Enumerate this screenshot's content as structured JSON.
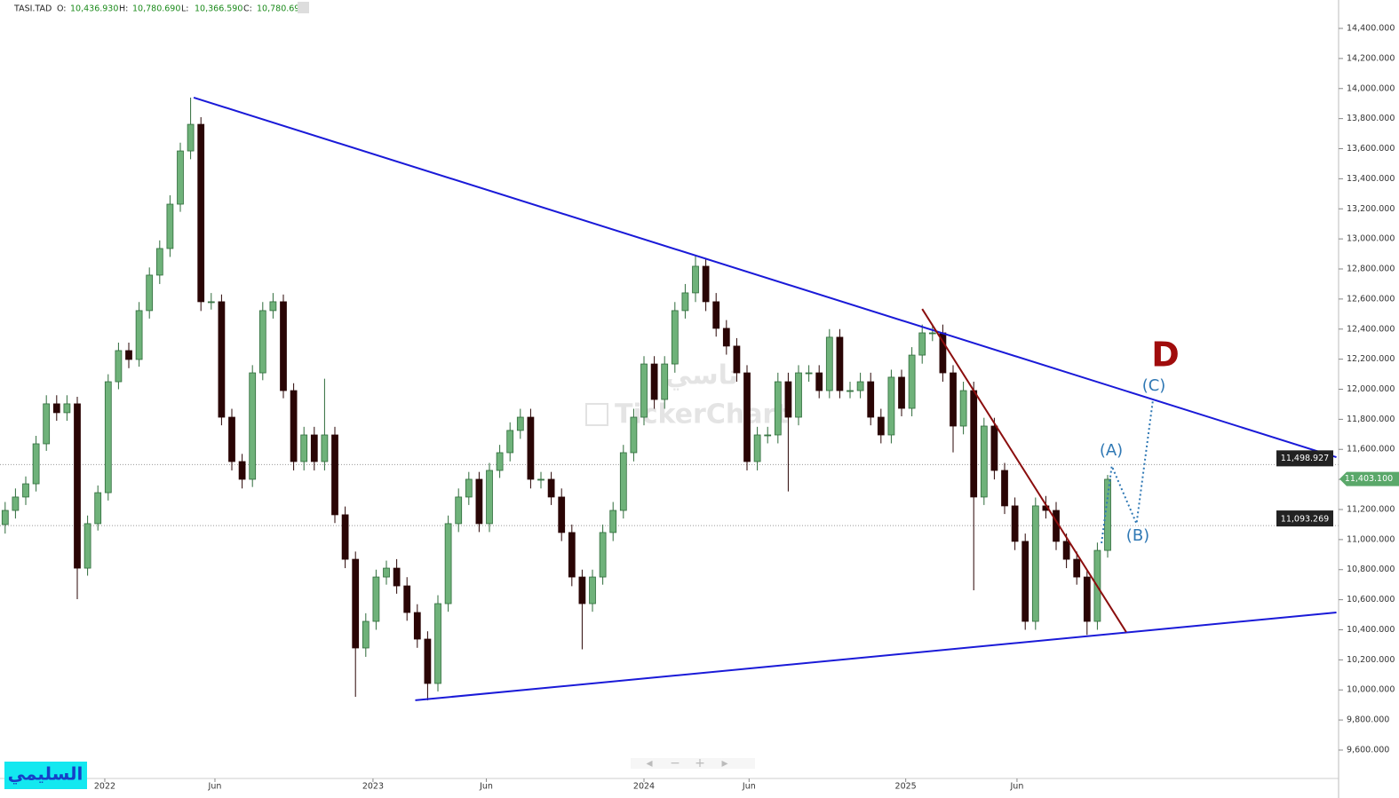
{
  "chart_data": {
    "type": "candlestick",
    "symbol": "TASI.TAD",
    "header": [
      {
        "key": "O:",
        "value": "10,436.930"
      },
      {
        "key": "H:",
        "value": "10,780.690"
      },
      {
        "key": "L:",
        "value": "10,366.590"
      },
      {
        "key": "C:",
        "value": "10,780.690"
      }
    ],
    "watermark": "TickerChart",
    "watermark_ar": "تاسي",
    "author": "السليمي",
    "up_color": "#6fb27a",
    "down_color": "#2a0505",
    "x": [
      0,
      1,
      2,
      3,
      4,
      5,
      6,
      7,
      8,
      9,
      10,
      11,
      12,
      13,
      14,
      15,
      16,
      17,
      18,
      19,
      20,
      21,
      22,
      23,
      24,
      25,
      26,
      27,
      28,
      29,
      30,
      31,
      32,
      33,
      34,
      35,
      36,
      37,
      38,
      39,
      40,
      41,
      42,
      43,
      44,
      45,
      46,
      47,
      48,
      49,
      50,
      51,
      52,
      53,
      54,
      55,
      56,
      57,
      58,
      59,
      60,
      61,
      62,
      63,
      64,
      65,
      66,
      67,
      68,
      69,
      70,
      71,
      72,
      73,
      74,
      75,
      76,
      77,
      78,
      79,
      80,
      81,
      82,
      83,
      84,
      85,
      86,
      87,
      88,
      89,
      90,
      91,
      92,
      93,
      94,
      95,
      96,
      97,
      98,
      99,
      100,
      101,
      102,
      103,
      104,
      105,
      106,
      107
    ],
    "open": [
      11100,
      11194,
      11283,
      11371,
      11637,
      11903,
      11844,
      11903,
      10810,
      11106,
      11312,
      12050,
      12257,
      12198,
      12523,
      12759,
      12936,
      13231,
      13585,
      13762,
      12582,
      12582,
      11814,
      11519,
      11401,
      12109,
      12523,
      12582,
      11991,
      11519,
      11696,
      11519,
      11696,
      11165,
      10869,
      10279,
      10456,
      10751,
      10810,
      10692,
      10515,
      10338,
      10043,
      10574,
      11106,
      11283,
      11401,
      11106,
      11460,
      11578,
      11726,
      11814,
      11401,
      11401,
      11283,
      11047,
      10751,
      10574,
      10751,
      11047,
      11194,
      11578,
      11814,
      12168,
      11932,
      12168,
      12523,
      12641,
      12818,
      12582,
      12405,
      12287,
      12109,
      11519,
      11696,
      11696,
      12050,
      11814,
      12109,
      12109,
      11991,
      12346,
      11991,
      11991,
      12050,
      11814,
      11696,
      12080,
      11873,
      12227,
      12375,
      12375,
      12109,
      11755,
      11991,
      11283,
      11755,
      11460,
      11224,
      10988,
      10456,
      11224,
      11194,
      10988,
      10869,
      10751,
      10456,
      10928
    ],
    "high": [
      11250,
      11340,
      11420,
      11690,
      11960,
      11960,
      11960,
      11950,
      11160,
      11360,
      12100,
      12310,
      12310,
      12580,
      12810,
      12990,
      13290,
      13640,
      13940,
      13810,
      12640,
      12630,
      11870,
      11570,
      12160,
      12580,
      12640,
      12630,
      12040,
      11750,
      11750,
      12070,
      11750,
      11220,
      10920,
      10510,
      10800,
      10860,
      10870,
      10750,
      10570,
      10390,
      10630,
      11160,
      11340,
      11450,
      11450,
      11510,
      11630,
      11780,
      11870,
      11870,
      11450,
      11450,
      11340,
      11100,
      10800,
      10800,
      11100,
      11250,
      11630,
      11870,
      12220,
      12220,
      12220,
      12580,
      12700,
      12890,
      12870,
      12640,
      12460,
      12340,
      12160,
      11750,
      11750,
      12110,
      12110,
      12160,
      12160,
      12160,
      12400,
      12400,
      12050,
      12110,
      12110,
      11870,
      12130,
      12130,
      12280,
      12430,
      12430,
      12430,
      12160,
      12050,
      12050,
      11810,
      11810,
      11510,
      11280,
      11040,
      11280,
      11290,
      11250,
      11040,
      10920,
      10800,
      10980,
      11430
    ],
    "low": [
      11040,
      11140,
      11230,
      11320,
      11590,
      11790,
      11790,
      10604,
      10760,
      11060,
      11260,
      12000,
      12140,
      12150,
      12470,
      12700,
      12880,
      13180,
      13530,
      12520,
      12530,
      11760,
      11460,
      11340,
      11350,
      12060,
      12470,
      11940,
      11460,
      11460,
      11460,
      11460,
      11110,
      10810,
      9954,
      10220,
      10400,
      10700,
      10640,
      10460,
      10280,
      9931,
      9990,
      10520,
      11050,
      11230,
      11050,
      11050,
      11410,
      11520,
      11670,
      11340,
      11340,
      11230,
      10990,
      10690,
      10270,
      10520,
      10700,
      10990,
      11140,
      11520,
      11760,
      11870,
      11870,
      12110,
      12470,
      12580,
      12520,
      12350,
      12230,
      12050,
      11460,
      11460,
      11640,
      11640,
      11320,
      11760,
      12050,
      11940,
      11940,
      11940,
      11940,
      11940,
      11760,
      11640,
      11640,
      11820,
      11820,
      12170,
      12320,
      12050,
      11580,
      11700,
      10663,
      11230,
      11400,
      11170,
      10930,
      10400,
      10400,
      11140,
      10930,
      10810,
      10700,
      10366,
      10400,
      10880
    ],
    "close": [
      11194,
      11283,
      11371,
      11637,
      11903,
      11844,
      11903,
      10810,
      11106,
      11312,
      12050,
      12257,
      12198,
      12523,
      12759,
      12936,
      13231,
      13585,
      13762,
      12582,
      12582,
      11814,
      11519,
      11401,
      12109,
      12523,
      12582,
      11991,
      11519,
      11696,
      11519,
      11696,
      11165,
      10869,
      10279,
      10456,
      10751,
      10810,
      10692,
      10515,
      10338,
      10043,
      10574,
      11106,
      11283,
      11401,
      11106,
      11460,
      11578,
      11726,
      11814,
      11401,
      11401,
      11283,
      11047,
      10751,
      10574,
      10751,
      11047,
      11194,
      11578,
      11814,
      12168,
      11932,
      12168,
      12523,
      12641,
      12818,
      12582,
      12405,
      12287,
      12109,
      11519,
      11696,
      11696,
      12050,
      11814,
      12109,
      12109,
      11991,
      12346,
      11991,
      11991,
      12050,
      11814,
      11696,
      12080,
      11873,
      12227,
      12375,
      12375,
      12109,
      11755,
      11991,
      11283,
      11755,
      11460,
      11224,
      10988,
      10456,
      11224,
      11194,
      10988,
      10869,
      10751,
      10456,
      10928,
      11401
    ],
    "xlim": [
      -0.5,
      129.24
    ],
    "xticks": [
      {
        "value": 9.67,
        "label": "2022"
      },
      {
        "value": 20.36,
        "label": "Jun"
      },
      {
        "value": 35.7,
        "label": "2023"
      },
      {
        "value": 46.7,
        "label": "Jun"
      },
      {
        "value": 62.0,
        "label": "2024"
      },
      {
        "value": 72.2,
        "label": "Jun"
      },
      {
        "value": 87.4,
        "label": "2025"
      },
      {
        "value": 98.2,
        "label": "Jun"
      }
    ],
    "ylim": [
      9411,
      14589
    ],
    "yticks": [
      {
        "value": 9600,
        "label": "9,600.000"
      },
      {
        "value": 9800,
        "label": "9,800.000"
      },
      {
        "value": 10000,
        "label": "10,000.000"
      },
      {
        "value": 10200,
        "label": "10,200.000"
      },
      {
        "value": 10400,
        "label": "10,400.000"
      },
      {
        "value": 10600,
        "label": "10,600.000"
      },
      {
        "value": 10800,
        "label": "10,800.000"
      },
      {
        "value": 11000,
        "label": "11,000.000"
      },
      {
        "value": 11200,
        "label": "11,200.000"
      },
      {
        "value": 11400,
        "label": "11,400.000"
      },
      {
        "value": 11600,
        "label": "11,600.000"
      },
      {
        "value": 11800,
        "label": "11,800.000"
      },
      {
        "value": 12000,
        "label": "12,000.000"
      },
      {
        "value": 12200,
        "label": "12,200.000"
      },
      {
        "value": 12400,
        "label": "12,400.000"
      },
      {
        "value": 12600,
        "label": "12,600.000"
      },
      {
        "value": 12800,
        "label": "12,800.000"
      },
      {
        "value": 13000,
        "label": "13,000.000"
      },
      {
        "value": 13200,
        "label": "13,200.000"
      },
      {
        "value": 13400,
        "label": "13,400.000"
      },
      {
        "value": 13600,
        "label": "13,600.000"
      },
      {
        "value": 13800,
        "label": "13,800.000"
      },
      {
        "value": 14000,
        "label": "14,000.000"
      },
      {
        "value": 14200,
        "label": "14,200.000"
      },
      {
        "value": 14400,
        "label": "14,400.000"
      }
    ],
    "trendlines": [
      {
        "color": "#1a1ad8",
        "x": [
          18.3,
          129.2
        ],
        "y": [
          13940,
          11548
        ]
      },
      {
        "color": "#1a1ad8",
        "x": [
          39.8,
          129.2
        ],
        "y": [
          9931,
          10515
        ]
      },
      {
        "color": "#8b0e0e",
        "x": [
          89.0,
          108.8
        ],
        "y": [
          12534,
          10385
        ]
      }
    ],
    "wave": {
      "color": "#2f78b4",
      "x": [
        106.4,
        107.4,
        109.8,
        111.4
      ],
      "y": [
        10976,
        11489,
        11106,
        11932
      ]
    },
    "wave_labels": [
      "(A)",
      "(B)",
      "(C)"
    ],
    "pattern_label": "D",
    "levels": [
      {
        "value": 11498.927,
        "label": "11,498.927"
      },
      {
        "value": 11093.269,
        "label": "11,093.269"
      }
    ],
    "last_price": {
      "value": 11403.1,
      "label": "11,403.100"
    }
  }
}
